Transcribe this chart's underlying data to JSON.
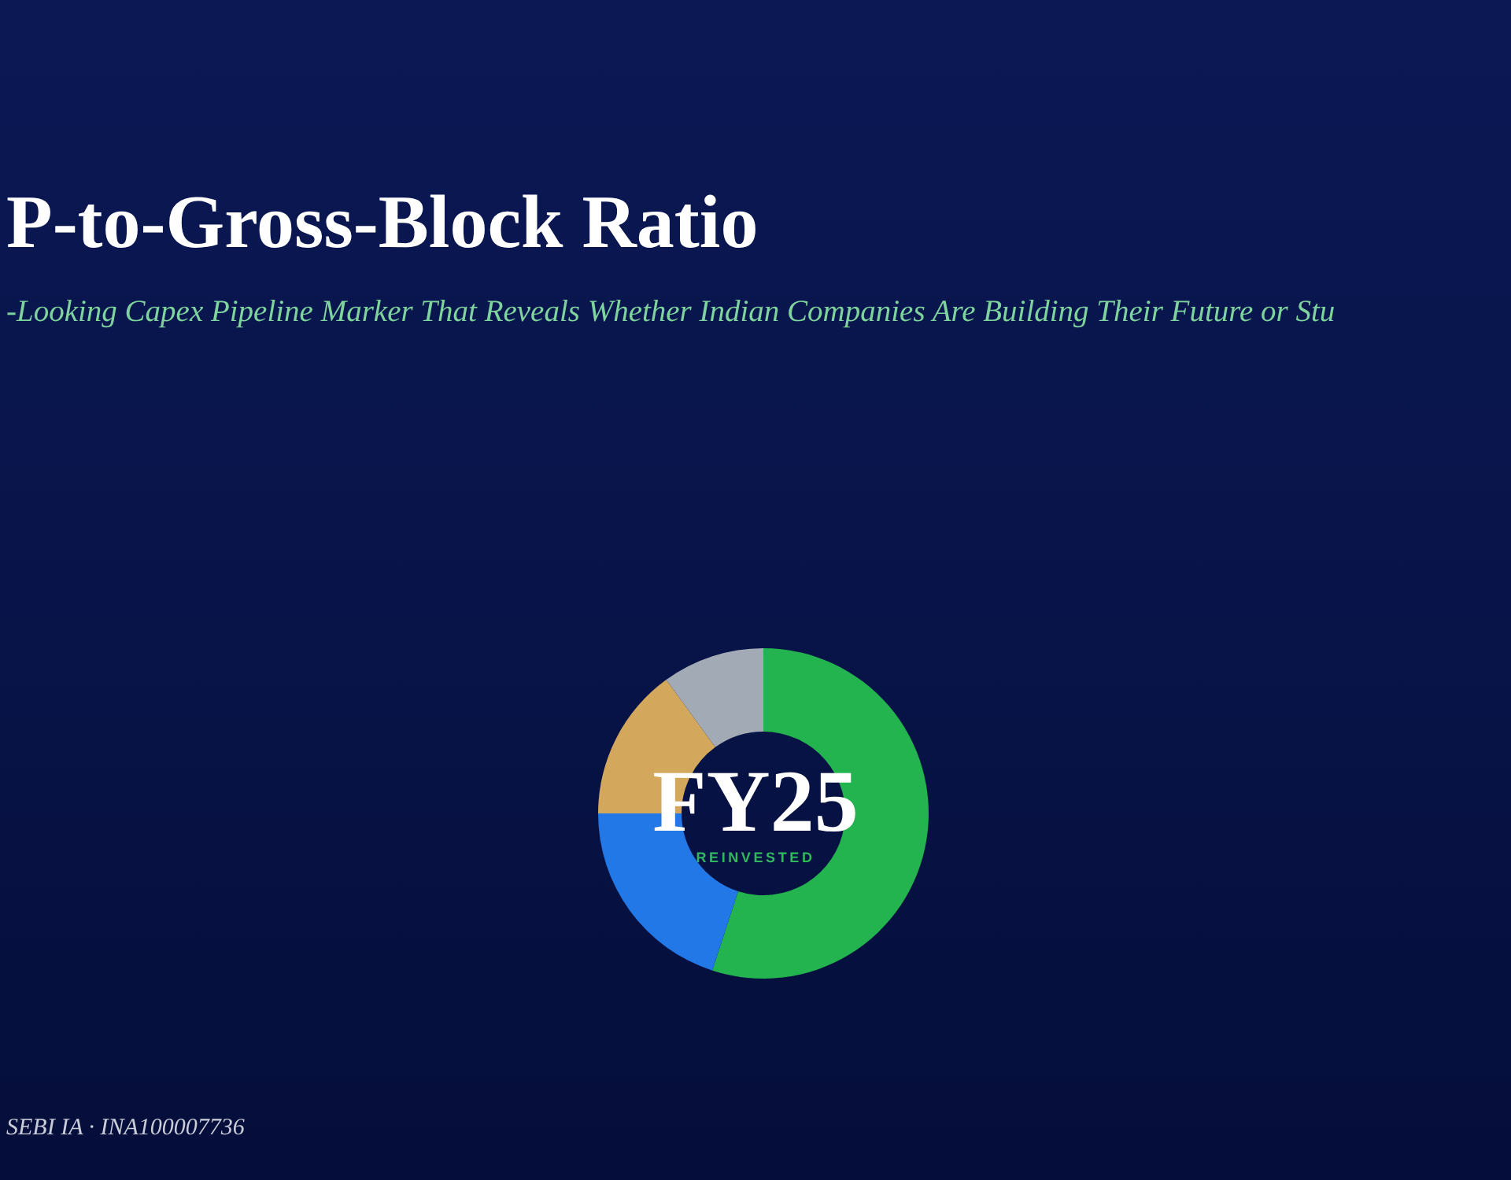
{
  "chart_data": {
    "type": "donut",
    "title": "P-to-Gross-Block Ratio",
    "subtitle": "-Looking Capex Pipeline Marker That Reveals Whether Indian Companies Are Building Their Future or Stu",
    "categories": [
      null,
      null,
      null,
      null
    ],
    "values": [
      55,
      20,
      15,
      10
    ],
    "colors": [
      "#23b34f",
      "#2178e6",
      "#d4a85c",
      "#a1aab5"
    ],
    "annotations": [
      "FY25",
      "REINVESTED",
      "SEBI IA · INA100007736"
    ]
  }
}
